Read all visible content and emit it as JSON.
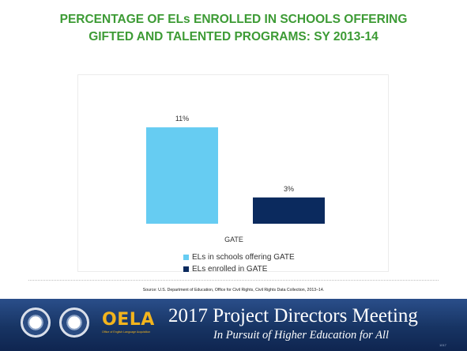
{
  "title": "PERCENTAGE OF ELs ENROLLED IN SCHOOLS OFFERING GIFTED AND TALENTED PROGRAMS: SY 2013-14",
  "colors": {
    "title": "#3d9b35",
    "bar_light": "#66ccf2",
    "bar_dark": "#0b2a5e",
    "banner": "#173463",
    "oela": "#f2b41d"
  },
  "chart_data": {
    "type": "bar",
    "categories": [
      "GATE"
    ],
    "series": [
      {
        "name": "ELs in schools offering GATE",
        "values": [
          11
        ],
        "label": "11%",
        "color": "#66ccf2"
      },
      {
        "name": "ELs enrolled in GATE",
        "values": [
          3
        ],
        "label": "3%",
        "color": "#0b2a5e"
      }
    ],
    "ylim": [
      0,
      12
    ],
    "grid": false,
    "legend": "bottom"
  },
  "source": "Source: U.S. Department of Education, Office for Civil Rights, Civil Rights Data Collection, 2013–14.",
  "banner": {
    "oela": "OELA",
    "oela_sub": "Office of English Language Acquisition",
    "meeting_title": "2017 Project Directors Meeting",
    "tagline": "In Pursuit of Higher Education for All",
    "page_number": "1017"
  }
}
